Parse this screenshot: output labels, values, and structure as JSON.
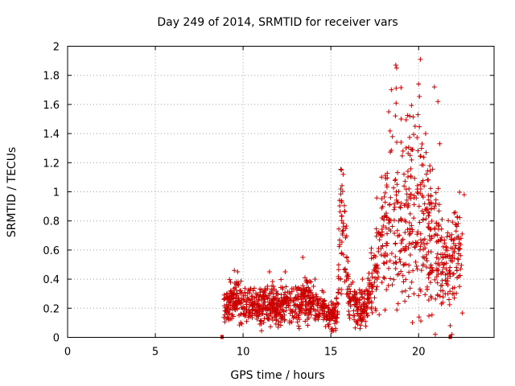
{
  "chart_data": {
    "type": "scatter",
    "title": "Day 249 of 2014, SRMTID for receiver vars",
    "xlabel": "GPS time / hours",
    "ylabel": "SRMTID / TECUs",
    "xlim": [
      0,
      24.3
    ],
    "ylim": [
      0,
      2
    ],
    "xticks": [
      0,
      5,
      10,
      15,
      20
    ],
    "yticks": [
      0,
      0.2,
      0.4,
      0.6,
      0.8,
      1,
      1.2,
      1.4,
      1.6,
      1.8,
      2
    ],
    "xtick_labels": [
      "0",
      "5",
      "10",
      "15",
      "20"
    ],
    "ytick_labels": [
      "0",
      "0.2",
      "0.4",
      "0.6",
      "0.8",
      "1",
      "1.2",
      "1.4",
      "1.6",
      "1.8",
      "2"
    ],
    "grid": true,
    "marker": "+",
    "color": "#cc0000",
    "axis_markers_x": [
      8.8,
      21.8
    ],
    "series": [
      {
        "name": "receiver vars",
        "trend": [
          [
            8.9,
            0.2,
            0.09
          ],
          [
            9.5,
            0.26,
            0.1
          ],
          [
            10.0,
            0.24,
            0.09
          ],
          [
            10.5,
            0.22,
            0.08
          ],
          [
            11.0,
            0.2,
            0.08
          ],
          [
            11.5,
            0.24,
            0.1
          ],
          [
            12.0,
            0.22,
            0.1
          ],
          [
            12.5,
            0.24,
            0.1
          ],
          [
            13.0,
            0.22,
            0.1
          ],
          [
            13.5,
            0.26,
            0.1
          ],
          [
            14.0,
            0.24,
            0.09
          ],
          [
            14.5,
            0.2,
            0.08
          ],
          [
            15.0,
            0.15,
            0.07
          ],
          [
            15.4,
            0.18,
            0.08
          ],
          [
            15.5,
            0.72,
            0.25
          ],
          [
            15.8,
            0.78,
            0.3
          ],
          [
            16.0,
            0.3,
            0.12
          ],
          [
            16.5,
            0.2,
            0.08
          ],
          [
            17.0,
            0.22,
            0.1
          ],
          [
            17.5,
            0.45,
            0.2
          ],
          [
            18.0,
            0.7,
            0.35
          ],
          [
            18.5,
            0.85,
            0.45
          ],
          [
            19.0,
            0.75,
            0.45
          ],
          [
            19.5,
            0.85,
            0.5
          ],
          [
            20.0,
            0.9,
            0.55
          ],
          [
            20.5,
            0.7,
            0.45
          ],
          [
            21.0,
            0.65,
            0.4
          ],
          [
            21.5,
            0.45,
            0.25
          ],
          [
            22.0,
            0.6,
            0.25
          ],
          [
            22.5,
            0.6,
            0.25
          ]
        ],
        "peaks": [
          [
            15.6,
            1.15
          ],
          [
            15.7,
            1.12
          ],
          [
            18.7,
            1.87
          ],
          [
            18.75,
            1.85
          ],
          [
            19.0,
            1.5
          ],
          [
            19.5,
            1.52
          ],
          [
            20.1,
            1.91
          ],
          [
            20.0,
            1.74
          ],
          [
            20.9,
            1.72
          ],
          [
            21.1,
            1.62
          ],
          [
            21.2,
            1.33
          ],
          [
            19.8,
            1.45
          ],
          [
            18.3,
            1.55
          ],
          [
            20.4,
            1.4
          ],
          [
            22.6,
            0.98
          ],
          [
            13.4,
            0.55
          ],
          [
            11.5,
            0.45
          ],
          [
            9.5,
            0.46
          ],
          [
            12.4,
            0.45
          ],
          [
            14.1,
            0.4
          ],
          [
            16.8,
            0.4
          ],
          [
            21.8,
            0.08
          ],
          [
            21.9,
            0.02
          ]
        ]
      }
    ]
  }
}
